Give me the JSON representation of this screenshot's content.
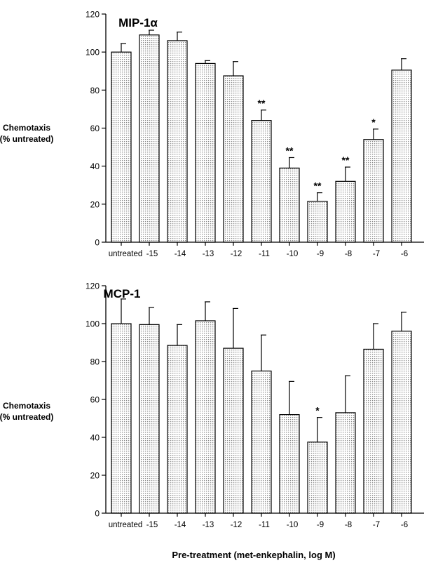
{
  "figure": {
    "xlabel": "Pre-treatment (met-enkephalin, log M)"
  },
  "chart_data": [
    {
      "type": "bar",
      "title": "MIP-1α",
      "ylabel_line1": "Chemotaxis",
      "ylabel_line2": "(% untreated)",
      "xlabel": "Pre-treatment (met-enkephalin, log M)",
      "categories": [
        "untreated",
        "-15",
        "-14",
        "-13",
        "-12",
        "-11",
        "-10",
        "-9",
        "-8",
        "-7",
        "-6"
      ],
      "values": [
        100,
        109,
        106,
        94,
        87.5,
        64,
        39,
        21.5,
        32,
        54,
        90.5
      ],
      "errors": [
        4.5,
        2.5,
        4.5,
        1.5,
        7.5,
        5.5,
        5.5,
        4.5,
        7.5,
        5.5,
        6
      ],
      "significance": [
        "",
        "",
        "",
        "",
        "",
        "**",
        "**",
        "**",
        "**",
        "*",
        ""
      ],
      "ylim": [
        0,
        120
      ],
      "yticks": [
        0,
        20,
        40,
        60,
        80,
        100,
        120
      ],
      "grid": false,
      "bar_fill": "#dcdcdc"
    },
    {
      "type": "bar",
      "title": "MCP-1",
      "ylabel_line1": "Chemotaxis",
      "ylabel_line2": "(% untreated)",
      "xlabel": "Pre-treatment (met-enkephalin, log M)",
      "categories": [
        "untreated",
        "-15",
        "-14",
        "-13",
        "-12",
        "-11",
        "-10",
        "-9",
        "-8",
        "-7",
        "-6"
      ],
      "values": [
        100,
        99.5,
        88.5,
        101.5,
        87,
        75,
        52,
        37.5,
        53,
        86.5,
        96
      ],
      "errors": [
        13,
        9,
        11,
        10,
        21,
        19,
        17.5,
        13,
        19.5,
        13.5,
        10
      ],
      "significance": [
        "",
        "",
        "",
        "",
        "",
        "",
        "",
        "*",
        "",
        "",
        ""
      ],
      "ylim": [
        0,
        120
      ],
      "yticks": [
        0,
        20,
        40,
        60,
        80,
        100,
        120
      ],
      "grid": false,
      "bar_fill": "#dcdcdc"
    }
  ]
}
